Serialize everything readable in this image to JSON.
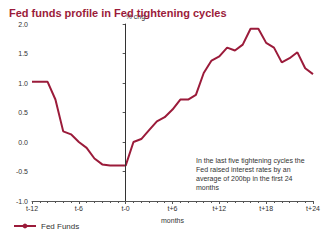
{
  "chart_data": {
    "type": "line",
    "title": "Fed funds profile in Fed tightening cycles",
    "y_label": "% chg",
    "x_label": "months",
    "annotation": "In the last five tightening cycles the Fed raised interest rates by an average of 200bp in the first 24 months",
    "x": [
      -12,
      -11,
      -10,
      -9,
      -8,
      -7,
      -6,
      -5,
      -4,
      -3,
      -2,
      -1,
      0,
      1,
      2,
      3,
      4,
      5,
      6,
      7,
      8,
      9,
      10,
      11,
      12,
      13,
      14,
      15,
      16,
      17,
      18,
      19,
      20,
      21,
      22,
      23,
      24
    ],
    "series": [
      {
        "name": "Fed Funds",
        "color": "#9b1b3a",
        "line_style": "solid",
        "values": [
          1.02,
          1.02,
          1.02,
          0.72,
          0.18,
          0.13,
          0.0,
          -0.1,
          -0.28,
          -0.38,
          -0.4,
          -0.4,
          -0.4,
          0.0,
          0.05,
          0.2,
          0.35,
          0.42,
          0.55,
          0.72,
          0.72,
          0.8,
          1.17,
          1.38,
          1.45,
          1.6,
          1.55,
          1.65,
          1.92,
          1.92,
          1.68,
          1.6,
          1.35,
          1.42,
          1.52,
          1.25,
          1.15
        ]
      }
    ],
    "xlim": [
      -12,
      24
    ],
    "xticks": [
      {
        "value": -12,
        "label": "t-12"
      },
      {
        "value": -6,
        "label": "t-6"
      },
      {
        "value": 0,
        "label": "t-0"
      },
      {
        "value": 6,
        "label": "t+6"
      },
      {
        "value": 12,
        "label": "t+12"
      },
      {
        "value": 18,
        "label": "t+18"
      },
      {
        "value": 24,
        "label": "t+24"
      }
    ],
    "ylim": [
      -1,
      2
    ],
    "yticks": [
      {
        "value": -1,
        "label": "-1.0"
      },
      {
        "value": -0.5,
        "label": "-0.5"
      },
      {
        "value": 0,
        "label": "0.0"
      },
      {
        "value": 0.5,
        "label": "0.5"
      },
      {
        "value": 1,
        "label": "1.0"
      },
      {
        "value": 1.5,
        "label": "1.5"
      },
      {
        "value": 2,
        "label": "2.0"
      }
    ],
    "vline": 0,
    "grid": false,
    "legend": "bottom-left"
  }
}
